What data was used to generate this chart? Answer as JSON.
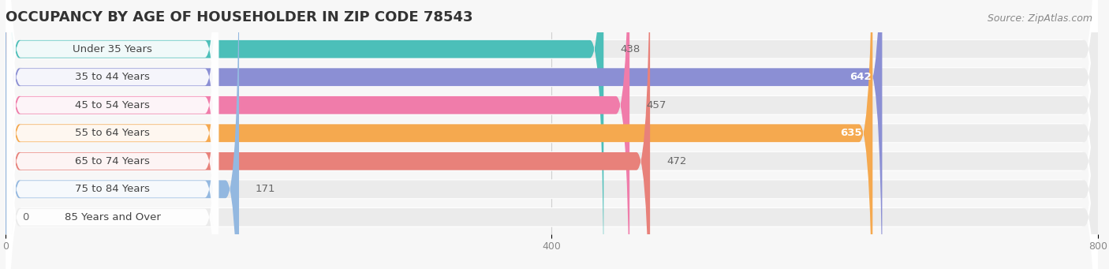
{
  "title": "OCCUPANCY BY AGE OF HOUSEHOLDER IN ZIP CODE 78543",
  "source": "Source: ZipAtlas.com",
  "categories": [
    "Under 35 Years",
    "35 to 44 Years",
    "45 to 54 Years",
    "55 to 64 Years",
    "65 to 74 Years",
    "75 to 84 Years",
    "85 Years and Over"
  ],
  "values": [
    438,
    642,
    457,
    635,
    472,
    171,
    0
  ],
  "bar_colors": [
    "#4cbfb9",
    "#8b8fd4",
    "#f07caa",
    "#f5a94f",
    "#e8817a",
    "#93b8e0",
    "#c8a8d8"
  ],
  "xlim": [
    0,
    800
  ],
  "xticks": [
    0,
    400,
    800
  ],
  "bg_color": "#f7f7f7",
  "bar_bg_color": "#ebebeb",
  "bar_height": 0.7,
  "title_fontsize": 13,
  "label_fontsize": 9.5,
  "value_fontsize": 9.5,
  "source_fontsize": 9
}
